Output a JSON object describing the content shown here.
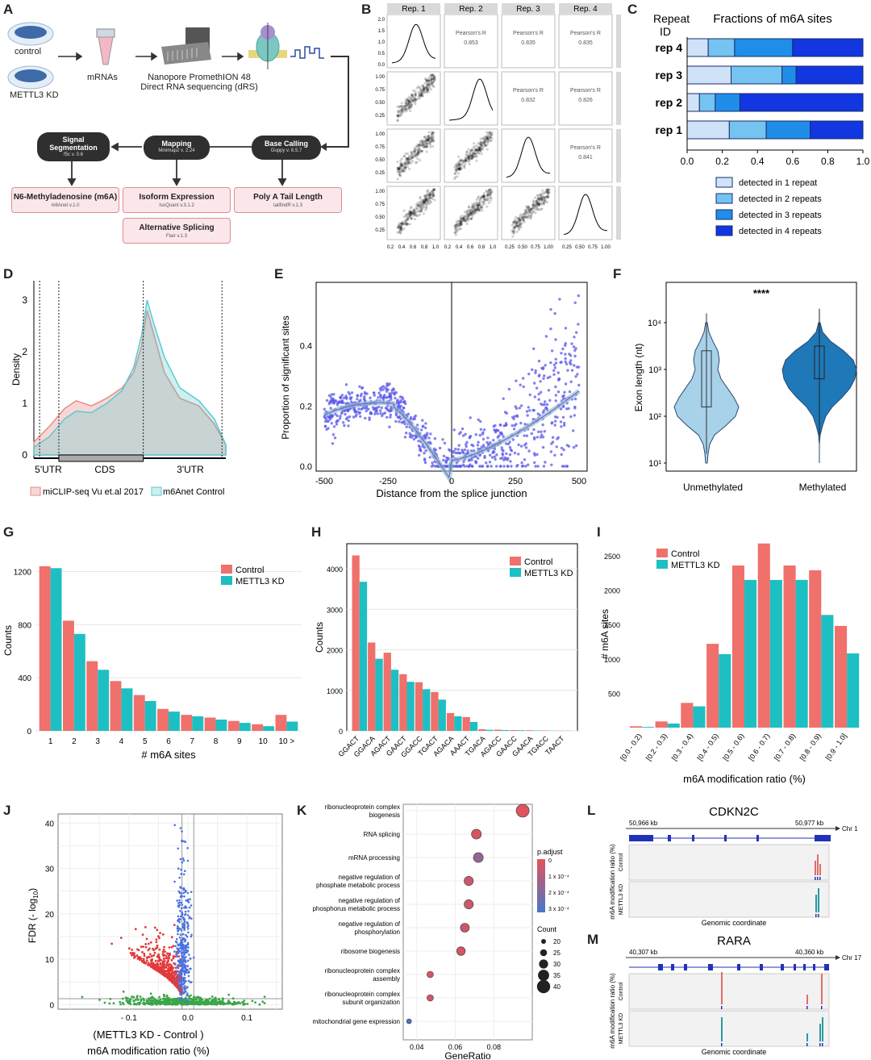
{
  "panels": [
    "A",
    "B",
    "C",
    "D",
    "E",
    "F",
    "G",
    "H",
    "I",
    "J",
    "K",
    "L",
    "M"
  ],
  "panelA": {
    "control": "control",
    "kd": "METTL3 KD",
    "mrnas": "mRNAs",
    "seq1": "Nanopore PromethION 48",
    "seq2": "Direct RNA sequencing (dRS)",
    "n_basecall": "Base Calling",
    "n_basecall_v": "Guppy v. 6.5.7",
    "n_mapping": "Mapping",
    "n_mapping_v": "Minimap2 v. 2.24",
    "n_signal1": "Signal",
    "n_signal2": "Segmentation",
    "n_signal_v": "f5c v. 0.6",
    "o_m6a": "N6-Methyladenosine (m6A)",
    "o_m6a_v": "m6Anet v.1.0",
    "o_iso": "Isoform Expression",
    "o_iso_v": "IsoQuant v.3.1.2",
    "o_polya": "Poly A Tail Length",
    "o_polya_v": "tailfindR v.1.3",
    "o_alt": "Alternative Splicing",
    "o_alt_v": "Flair v.1.3"
  },
  "panelB": {
    "cols": [
      "Rep. 1",
      "Rep. 2",
      "Rep. 3",
      "Rep. 4"
    ],
    "rows": [
      "Rep. 1",
      "Rep. 2",
      "Rep. 3",
      "Rep. 4"
    ],
    "corr_label": "Pearson's R",
    "corrs": [
      [
        "0.853",
        "0.835",
        "0.835"
      ],
      [
        "0.832",
        "0.826"
      ],
      [
        "0.841"
      ]
    ],
    "yticks": [
      "2.0",
      "1.5",
      "1.0",
      "0.5",
      "0.0"
    ],
    "yticks_b": [
      "1.00",
      "0.75",
      "0.50",
      "0.25"
    ],
    "xticks": [
      "0.2",
      "0.4",
      "0.6",
      "0.8",
      "1.0"
    ],
    "xticks_b": [
      "0.25",
      "0.50",
      "0.75",
      "1.00"
    ]
  },
  "panelC": {
    "title": "Fractions of m6A sites",
    "ylab1": "Repeat",
    "ylab2": "ID",
    "reps": [
      "rep 4",
      "rep 3",
      "rep 2",
      "rep 1"
    ],
    "xticks": [
      "0.0",
      "0.2",
      "0.4",
      "0.6",
      "0.8",
      "1.0"
    ],
    "legend": [
      "detected in 1 repeat",
      "detected in 2 repeats",
      "detected in 3 repeats",
      "detected in 4 repeats"
    ],
    "colors": [
      "#cfe2f8",
      "#74c3f1",
      "#1f8ee8",
      "#1236e0"
    ]
  },
  "panelD": {
    "ylabel": "Density",
    "yticks": [
      "0",
      "1",
      "2",
      "3"
    ],
    "regions": [
      "5'UTR",
      "CDS",
      "3'UTR"
    ],
    "legend": [
      "miCLIP-seq Vu et.al 2017",
      "m6Anet Control"
    ],
    "colors": [
      "#e48c86",
      "#5ec9cf"
    ]
  },
  "panelE": {
    "ylabel": "Proportion of significant sites",
    "xlabel": "Distance from the splice junction",
    "yticks": [
      "0.0",
      "0.2",
      "0.4"
    ],
    "xticks": [
      "-500",
      "-250",
      "0",
      "250",
      "500"
    ],
    "color": "#5a58e8"
  },
  "panelF": {
    "ylabel": "Exon length (nt)",
    "signif": "****",
    "categories": [
      "Unmethylated",
      "Methylated"
    ],
    "yticks": [
      "10¹",
      "10²",
      "10³",
      "10⁴"
    ],
    "colors": [
      "#a8d1ea",
      "#1f78b8"
    ]
  },
  "legend2": [
    "Control",
    "METTL3 KD"
  ],
  "colors2": [
    "#f0706c",
    "#1ebfc2"
  ],
  "chart_data": [
    {
      "panel": "C",
      "type": "bar",
      "title": "Fractions of m6A sites",
      "categories": [
        "rep 4",
        "rep 3",
        "rep 2",
        "rep 1"
      ],
      "series": [
        {
          "name": "detected in 1 repeat",
          "values": [
            0.12,
            0.25,
            0.07,
            0.24
          ]
        },
        {
          "name": "detected in 2 repeats",
          "values": [
            0.15,
            0.29,
            0.09,
            0.21
          ]
        },
        {
          "name": "detected in 3 repeats",
          "values": [
            0.33,
            0.08,
            0.14,
            0.25
          ]
        },
        {
          "name": "detected in 4 repeats",
          "values": [
            0.4,
            0.38,
            0.7,
            0.3
          ]
        }
      ],
      "xlim": [
        0,
        1
      ]
    },
    {
      "panel": "G",
      "type": "bar",
      "categories": [
        "1",
        "2",
        "3",
        "4",
        "5",
        "6",
        "7",
        "8",
        "9",
        "10",
        "10 >"
      ],
      "series": [
        {
          "name": "Control",
          "values": [
            1240,
            830,
            525,
            375,
            270,
            165,
            120,
            100,
            75,
            50,
            120
          ]
        },
        {
          "name": "METTL3 KD",
          "values": [
            1225,
            730,
            460,
            320,
            225,
            145,
            110,
            85,
            60,
            35,
            70
          ]
        }
      ],
      "xlabel": "# m6A sites",
      "ylabel": "Counts",
      "yticks": [
        "0",
        "400",
        "800",
        "1200"
      ],
      "ylim": [
        0,
        1300
      ]
    },
    {
      "panel": "H",
      "type": "bar",
      "categories": [
        "GGACT",
        "GGACA",
        "AGACT",
        "GAACT",
        "GGACC",
        "TGACT",
        "AGACA",
        "AAACT",
        "TGACA",
        "AGACC",
        "GAACC",
        "GAACA",
        "TGACC",
        "TAACT"
      ],
      "series": [
        {
          "name": "Control",
          "values": [
            4330,
            2180,
            1930,
            1400,
            1200,
            960,
            440,
            340,
            40,
            30,
            20,
            15,
            10,
            5
          ]
        },
        {
          "name": "METTL3 KD",
          "values": [
            3680,
            1780,
            1510,
            1210,
            1030,
            770,
            360,
            220,
            25,
            20,
            15,
            10,
            5,
            3
          ]
        }
      ],
      "ylabel": "Counts",
      "yticks": [
        "0",
        "1000",
        "2000",
        "3000",
        "4000"
      ],
      "ylim": [
        0,
        4500
      ]
    },
    {
      "panel": "I",
      "type": "bar",
      "categories": [
        "[0.0 - 0.2)",
        "[0.2 - 0.3)",
        "[0.3 - 0.4)",
        "[0.4 - 0.5)",
        "[0.5 - 0.6)",
        "[0.6 - 0.7)",
        "[0.7 - 0.8)",
        "[0.8 - 0.9)",
        "[0.9 - 1.0]"
      ],
      "series": [
        {
          "name": "Control",
          "values": [
            20,
            90,
            360,
            1220,
            2360,
            2680,
            2360,
            2290,
            1480
          ]
        },
        {
          "name": "METTL3 KD",
          "values": [
            10,
            60,
            310,
            1070,
            2150,
            2150,
            2150,
            1640,
            1080
          ]
        }
      ],
      "xlabel": "m6A modification ratio (%)",
      "ylabel": "# m6A sites",
      "yticks": [
        "500",
        "1000",
        "1500",
        "2000",
        "2500"
      ],
      "ylim": [
        0,
        2700
      ]
    },
    {
      "panel": "J",
      "type": "scatter",
      "xlabel1": "(METTL3 KD - Control )",
      "xlabel2": "m6A modification ratio (%)",
      "ylabel": "FDR (- log",
      "ylabel_sub": "10",
      "ylabel_end": ")",
      "xticks": [
        "- 0.1",
        "0.0",
        "0.1"
      ],
      "yticks": [
        "0",
        "10",
        "20",
        "30",
        "40"
      ],
      "xlim": [
        -0.22,
        0.16
      ],
      "ylim": [
        -1,
        42
      ]
    },
    {
      "panel": "K",
      "type": "scatter",
      "xlabel": "GeneRatio",
      "xticks": [
        "0.04",
        "0.06",
        "0.08"
      ],
      "terms": [
        {
          "label": [
            "ribonucleoprotein complex",
            "biogenesis"
          ],
          "ratio": 0.095,
          "count": 42,
          "padj": 1e-05
        },
        {
          "label": [
            "RNA splicing"
          ],
          "ratio": 0.071,
          "count": 32,
          "padj": 3e-05
        },
        {
          "label": [
            "mRNA processing"
          ],
          "ratio": 0.072,
          "count": 32,
          "padj": 0.00018
        },
        {
          "label": [
            "negative regulation of",
            "phosphate metabolic process"
          ],
          "ratio": 0.067,
          "count": 30,
          "padj": 6e-05
        },
        {
          "label": [
            "negative regulation of",
            "phosphorus metabolic process"
          ],
          "ratio": 0.067,
          "count": 30,
          "padj": 6e-05
        },
        {
          "label": [
            "negative regulation of",
            "phosphorylation"
          ],
          "ratio": 0.065,
          "count": 29,
          "padj": 5e-05
        },
        {
          "label": [
            "ribosome biogenesis"
          ],
          "ratio": 0.063,
          "count": 28,
          "padj": 4e-05
        },
        {
          "label": [
            "ribonucleoprotein complex",
            "assembly"
          ],
          "ratio": 0.047,
          "count": 21,
          "padj": 4e-05
        },
        {
          "label": [
            "ribonucleoprotein complex",
            "subunit organization"
          ],
          "ratio": 0.047,
          "count": 21,
          "padj": 4e-05
        },
        {
          "label": [
            "mitochondrial gene expression"
          ],
          "ratio": 0.036,
          "count": 16,
          "padj": 0.00035
        }
      ],
      "padj_title": "p.adjust",
      "padj_ticks": [
        "0",
        "1 x 10⁻⁴",
        "2 x 10⁻⁴",
        "3 x 10⁻⁴"
      ],
      "count_title": "Count",
      "count_ticks": [
        "20",
        "25",
        "30",
        "35",
        "40"
      ]
    }
  ],
  "panelL": {
    "gene": "CDKN2C",
    "left": "50,966 kb",
    "right": "50,977 kb",
    "chr": "Chr 1",
    "ylabel": "m6A modification ratio (%)",
    "tracks": [
      "Control",
      "METTL3 KD"
    ],
    "xlabel": "Genomic coordinate"
  },
  "panelM": {
    "gene": "RARA",
    "left": "40,307 kb",
    "right": "40,360 kb",
    "chr": "Chr 17",
    "ylabel": "m6A modification ratio (%)",
    "tracks": [
      "Control",
      "METTL3 KD"
    ],
    "xlabel": "Genomic coordinate"
  }
}
